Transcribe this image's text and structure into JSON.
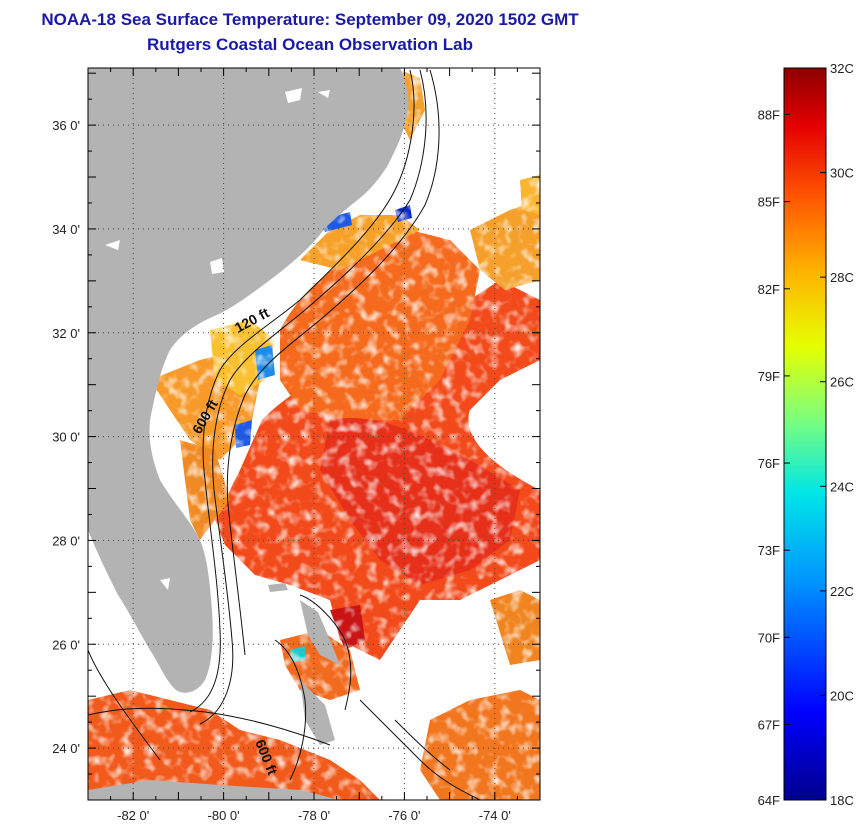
{
  "header": {
    "title": "NOAA-18 Sea Surface Temperature:  September 09, 2020 1502 GMT",
    "subtitle": "Rutgers Coastal Ocean Observation Lab"
  },
  "map": {
    "lat_labels": [
      {
        "label": "36 0'",
        "value": 36
      },
      {
        "label": "34 0'",
        "value": 34
      },
      {
        "label": "32 0'",
        "value": 32
      },
      {
        "label": "30 0'",
        "value": 30
      },
      {
        "label": "28 0'",
        "value": 28
      },
      {
        "label": "26 0'",
        "value": 26
      },
      {
        "label": "24 0'",
        "value": 24
      }
    ],
    "lon_labels": [
      {
        "label": "-82 0'",
        "value": -82
      },
      {
        "label": "-80 0'",
        "value": -80
      },
      {
        "label": "-78 0'",
        "value": -78
      },
      {
        "label": "-76 0'",
        "value": -76
      },
      {
        "label": "-74 0'",
        "value": -74
      }
    ],
    "lat_range": [
      23.0,
      37.1
    ],
    "lon_range": [
      -83.0,
      -73.0
    ],
    "contour_labels": {
      "c120": "120 ft",
      "c600a": "600 ft",
      "c600b": "600 ft"
    },
    "land_color": "#b3b3b3",
    "grid": "dotted"
  },
  "colorbar": {
    "celsius_labels": [
      "32C",
      "30C",
      "28C",
      "26C",
      "24C",
      "22C",
      "20C",
      "18C"
    ],
    "celsius_values": [
      32,
      30,
      28,
      26,
      24,
      22,
      20,
      18
    ],
    "fahrenheit_labels": [
      "88F",
      "85F",
      "82F",
      "79F",
      "76F",
      "73F",
      "70F",
      "67F",
      "64F"
    ],
    "fahrenheit_values": [
      88,
      85,
      82,
      79,
      76,
      73,
      70,
      67,
      64
    ],
    "range_c": [
      18,
      32
    ]
  }
}
